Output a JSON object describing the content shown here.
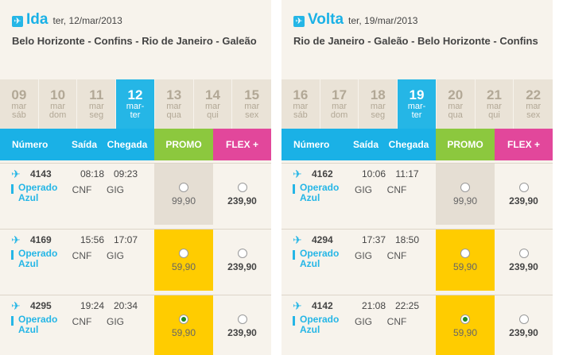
{
  "colors": {
    "accent": "#1ab1e6",
    "promo": "#8cc83e",
    "flex": "#e2479b",
    "selected_fare": "#ffcc00"
  },
  "panels": [
    {
      "direction": "Ida",
      "date": "ter, 12/mar/2013",
      "route": "Belo Horizonte - Confins - Rio de Janeiro - Galeão",
      "days": [
        {
          "num": "09",
          "month": "mar",
          "weekday": "sáb"
        },
        {
          "num": "10",
          "month": "mar",
          "weekday": "dom"
        },
        {
          "num": "11",
          "month": "mar",
          "weekday": "seg"
        },
        {
          "num": "12",
          "month": "mar-",
          "weekday": "ter",
          "selected": true
        },
        {
          "num": "13",
          "month": "mar",
          "weekday": "qua"
        },
        {
          "num": "14",
          "month": "mar",
          "weekday": "qui"
        },
        {
          "num": "15",
          "month": "mar",
          "weekday": "sex"
        }
      ],
      "columns": {
        "number": "Número",
        "departure": "Saída",
        "arrival": "Chegada",
        "promo": "PROMO",
        "flex": "FLEX +"
      },
      "flights": [
        {
          "number": "4143",
          "dep_time": "08:18",
          "arr_time": "09:23",
          "operated": "Operado Azul",
          "dep_airport": "CNF",
          "arr_airport": "GIG",
          "promo_price": "99,90",
          "flex_price": "239,90",
          "promo_style": "gray",
          "promo_selected": false
        },
        {
          "number": "4169",
          "dep_time": "15:56",
          "arr_time": "17:07",
          "operated": "Operado Azul",
          "dep_airport": "CNF",
          "arr_airport": "GIG",
          "promo_price": "59,90",
          "flex_price": "239,90",
          "promo_style": "yellow",
          "promo_selected": false
        },
        {
          "number": "4295",
          "dep_time": "19:24",
          "arr_time": "20:34",
          "operated": "Operado Azul",
          "dep_airport": "CNF",
          "arr_airport": "GIG",
          "promo_price": "59,90",
          "flex_price": "239,90",
          "promo_style": "yellow",
          "promo_selected": true
        }
      ]
    },
    {
      "direction": "Volta",
      "date": "ter, 19/mar/2013",
      "route": "Rio de Janeiro - Galeão - Belo Horizonte - Confins",
      "days": [
        {
          "num": "16",
          "month": "mar",
          "weekday": "sáb"
        },
        {
          "num": "17",
          "month": "mar",
          "weekday": "dom"
        },
        {
          "num": "18",
          "month": "mar",
          "weekday": "seg"
        },
        {
          "num": "19",
          "month": "mar-",
          "weekday": "ter",
          "selected": true
        },
        {
          "num": "20",
          "month": "mar",
          "weekday": "qua"
        },
        {
          "num": "21",
          "month": "mar",
          "weekday": "qui"
        },
        {
          "num": "22",
          "month": "mar",
          "weekday": "sex"
        }
      ],
      "columns": {
        "number": "Número",
        "departure": "Saída",
        "arrival": "Chegada",
        "promo": "PROMO",
        "flex": "FLEX +"
      },
      "flights": [
        {
          "number": "4162",
          "dep_time": "10:06",
          "arr_time": "11:17",
          "operated": "Operado Azul",
          "dep_airport": "GIG",
          "arr_airport": "CNF",
          "promo_price": "99,90",
          "flex_price": "239,90",
          "promo_style": "gray",
          "promo_selected": false
        },
        {
          "number": "4294",
          "dep_time": "17:37",
          "arr_time": "18:50",
          "operated": "Operado Azul",
          "dep_airport": "GIG",
          "arr_airport": "CNF",
          "promo_price": "59,90",
          "flex_price": "239,90",
          "promo_style": "yellow",
          "promo_selected": false
        },
        {
          "number": "4142",
          "dep_time": "21:08",
          "arr_time": "22:25",
          "operated": "Operado Azul",
          "dep_airport": "GIG",
          "arr_airport": "CNF",
          "promo_price": "59,90",
          "flex_price": "239,90",
          "promo_style": "yellow",
          "promo_selected": true
        }
      ]
    }
  ]
}
